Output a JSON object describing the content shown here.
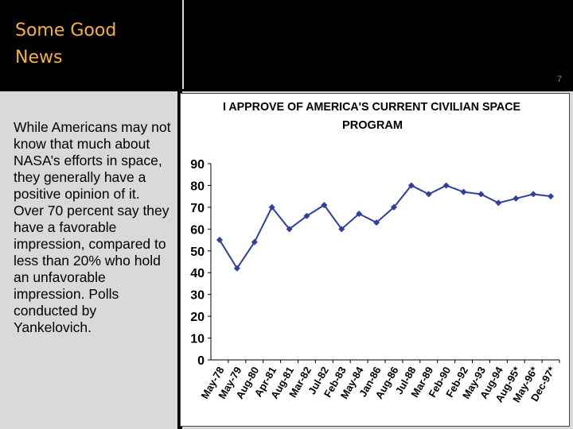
{
  "slide": {
    "title": "Some Good News",
    "slide_number": "7",
    "body_text": "While Americans may not know that much about NASA’s efforts in space, they generally have a positive opinion of it. Over 70 percent say they have a favorable impression, compared to less than 20% who hold an unfavorable impression. Polls conducted by Yankelovich."
  },
  "colors": {
    "title": "#f5b041",
    "series": "#2e3f9e",
    "panel": "#d9d9d9"
  },
  "chart_data": {
    "type": "line",
    "title": "I APPROVE OF AMERICA'S CURRENT CIVILIAN SPACE PROGRAM",
    "title_lines": [
      "I APPROVE OF AMERICA'S CURRENT CIVILIAN SPACE",
      "PROGRAM"
    ],
    "categories": [
      "May-78",
      "May-79",
      "Aug-80",
      "Apr-81",
      "Aug-81",
      "Mar-82",
      "Jul-82",
      "Feb-83",
      "May-84",
      "Jan-86",
      "Aug-86",
      "Jul-88",
      "Mar-89",
      "Feb-90",
      "Feb-92",
      "May-93",
      "Aug-94",
      "Aug-95*",
      "May-96*",
      "Dec-97*"
    ],
    "series": [
      {
        "values": [
          55,
          42,
          54,
          70,
          60,
          66,
          71,
          60,
          67,
          63,
          70,
          80,
          76,
          80,
          77,
          76,
          72,
          74,
          76,
          75
        ]
      }
    ],
    "ylim": [
      0,
      90
    ],
    "yticks": [
      "0",
      "10",
      "20",
      "30",
      "40",
      "50",
      "60",
      "70",
      "80",
      "90"
    ],
    "grid": false,
    "legend": "none"
  }
}
